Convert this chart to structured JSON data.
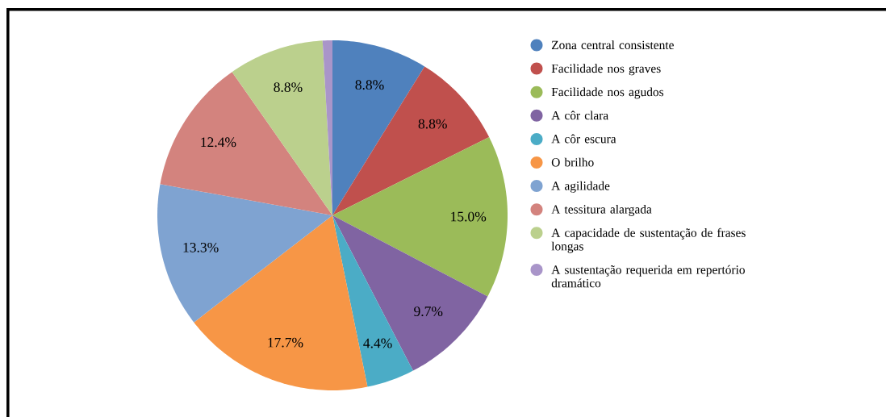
{
  "chart_data": {
    "type": "pie",
    "categories": [
      "Zona central consistente",
      "Facilidade nos graves",
      "Facilidade nos agudos",
      "A côr clara",
      "A côr escura",
      "O brilho",
      "A agilidade",
      "A tessitura alargada",
      "A capacidade de sustentação de frases longas",
      "A sustentação requerida em repertório dramático"
    ],
    "values": [
      8.8,
      8.8,
      15.0,
      9.7,
      4.4,
      17.7,
      13.3,
      12.4,
      8.8,
      0.9
    ],
    "colors": [
      "#4f81bd",
      "#c0504d",
      "#9bbb59",
      "#8064a2",
      "#4bacc6",
      "#f79646",
      "#7fa3d1",
      "#d3837e",
      "#bbd08d",
      "#a995c9"
    ],
    "value_labels": [
      "8.8%",
      "8.8%",
      "15.0%",
      "9.7%",
      "4.4%",
      "17.7%",
      "13.3%",
      "12.4%",
      "8.8%",
      null
    ],
    "legend": "right"
  }
}
